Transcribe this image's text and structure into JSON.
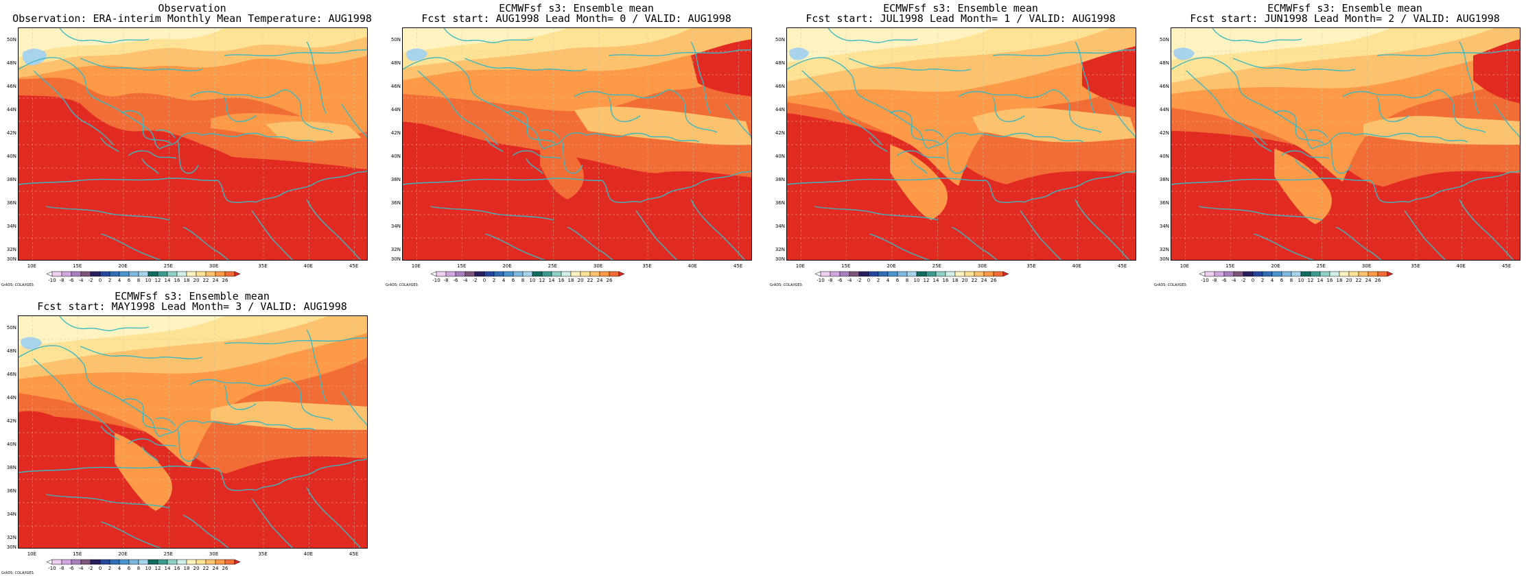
{
  "panels": [
    {
      "title1": "Observation",
      "title2": "Observation: ERA-interim Monthly Mean Temperature: AUG1998"
    },
    {
      "title1": "ECMWFsf s3: Ensemble mean",
      "title2": "Fcst start: AUG1998  Lead Month= 0 / VALID: AUG1998"
    },
    {
      "title1": "ECMWFsf s3: Ensemble mean",
      "title2": "Fcst start: JUL1998  Lead Month= 1 / VALID: AUG1998"
    },
    {
      "title1": "ECMWFsf s3: Ensemble mean",
      "title2": "Fcst start: JUN1998  Lead Month= 2 / VALID: AUG1998"
    },
    {
      "title1": "ECMWFsf s3: Ensemble mean",
      "title2": "Fcst start: MAY1998  Lead Month= 3 / VALID: AUG1998"
    }
  ],
  "lat_labels": [
    "50N",
    "48N",
    "46N",
    "44N",
    "42N",
    "40N",
    "38N",
    "36N",
    "34N",
    "32N",
    "30N"
  ],
  "lon_labels": [
    "10E",
    "15E",
    "20E",
    "25E",
    "30E",
    "35E",
    "40E",
    "45E"
  ],
  "colorbar": {
    "labels": [
      "-10",
      "-8",
      "-6",
      "-4",
      "-2",
      "0",
      "2",
      "4",
      "6",
      "8",
      "10",
      "12",
      "14",
      "16",
      "18",
      "20",
      "22",
      "24",
      "26"
    ],
    "colors": [
      "#ffffff",
      "#eecff0",
      "#d2a6e0",
      "#a77fbf",
      "#7e567c",
      "#2a1f5e",
      "#27479a",
      "#2e6fb5",
      "#4a96cd",
      "#7cb8de",
      "#a7d3ec",
      "#106b60",
      "#3d9a8e",
      "#8fd0c5",
      "#cfeee9",
      "#fff3c1",
      "#fee396",
      "#fdc26d",
      "#fc9a48",
      "#f26c35",
      "#e02a22"
    ],
    "grads_label": "GrADS: COLA/IGES"
  },
  "palette": {
    "pale_yellow": "#fff3c1",
    "light_yellow": "#fee396",
    "light_orange": "#fdc26d",
    "orange": "#fc9a48",
    "red_orange": "#f26c35",
    "red": "#e02a22",
    "light_blue": "#a7d3ec",
    "coastline": "#3cb8c2"
  }
}
